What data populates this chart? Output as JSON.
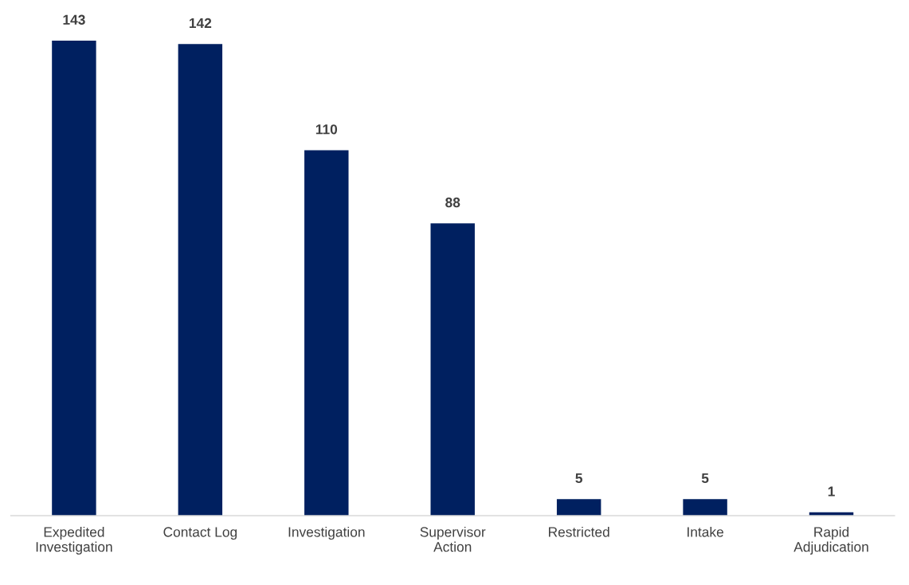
{
  "chart_data": {
    "type": "bar",
    "categories": [
      "Expedited\nInvestigation",
      "Contact Log",
      "Investigation",
      "Supervisor\nAction",
      "Restricted",
      "Intake",
      "Rapid\nAdjudication"
    ],
    "values": [
      143,
      142,
      110,
      88,
      5,
      5,
      1
    ],
    "color": "#002060",
    "data_labels": true,
    "grid": false,
    "legend": false
  }
}
